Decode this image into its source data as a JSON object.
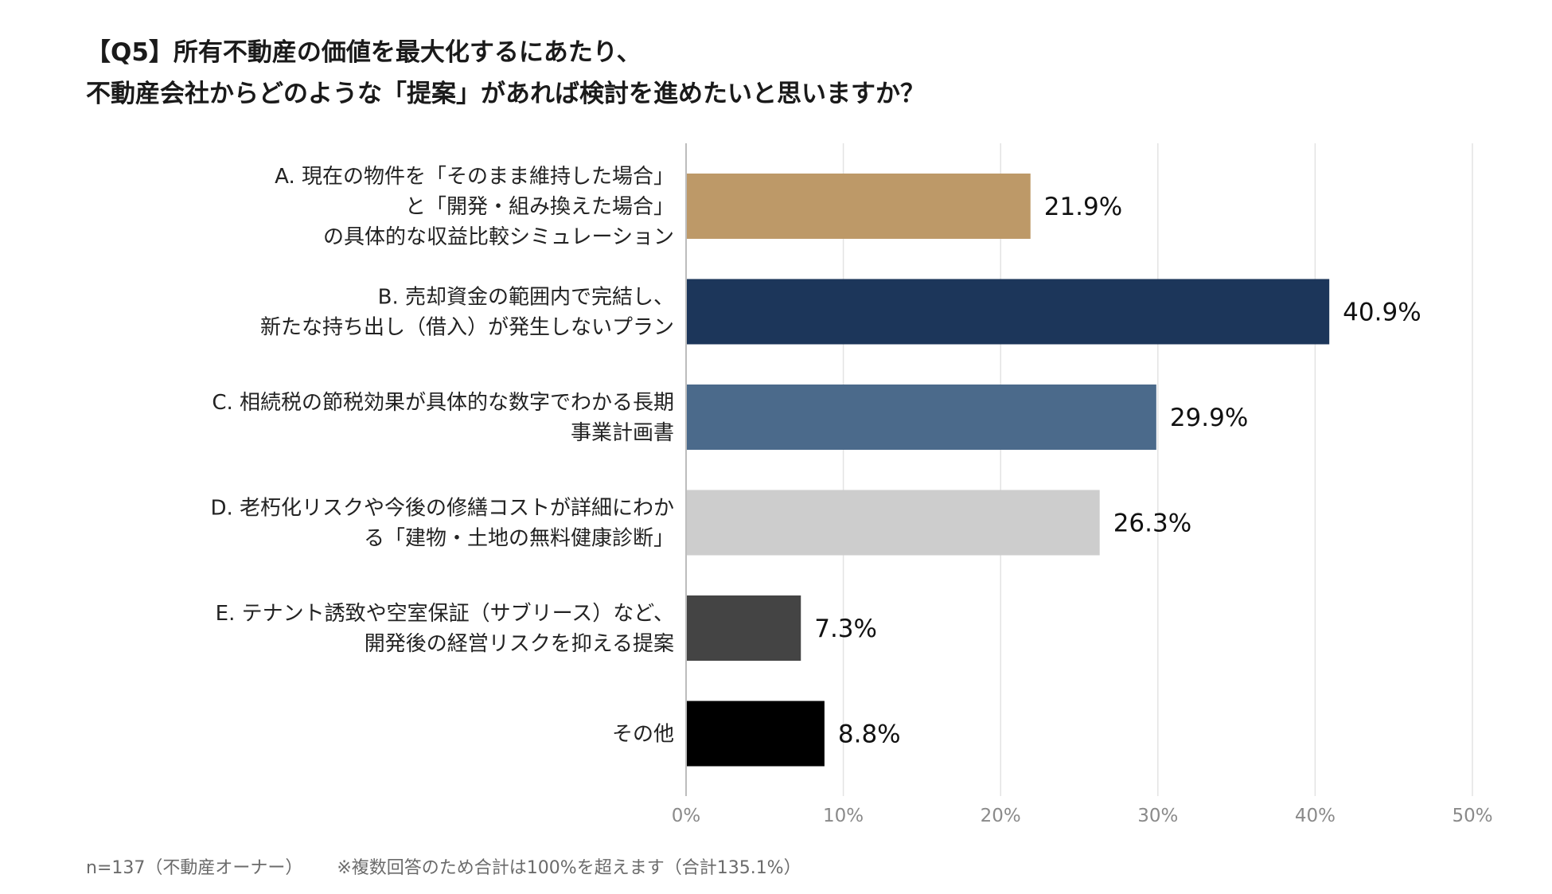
{
  "title": {
    "line1": "【Q5】所有不動産の価値を最大化するにあたり、",
    "line2": "不動産会社からどのような「提案」があれば検討を進めたいと思いますか？"
  },
  "footnote": {
    "sample": "n=137（不動産オーナー）",
    "note": "※複数回答のため合計は100%を超えます（合計135.1%）"
  },
  "chart_data": {
    "type": "bar",
    "orientation": "horizontal",
    "categories": [
      [
        "A. 現在の物件を「そのまま維持した場合」",
        "と「開発・組み換えた場合」",
        "の具体的な収益比較シミュレーション"
      ],
      [
        "B. 売却資金の範囲内で完結し、",
        "新たな持ち出し（借入）が発生しないプラン"
      ],
      [
        "C. 相続税の節税効果が具体的な数字でわかる長期",
        "事業計画書"
      ],
      [
        "D. 老朽化リスクや今後の修繕コストが詳細にわか",
        "る「建物・土地の無料健康診断」"
      ],
      [
        "E. テナント誘致や空室保証（サブリース）など、",
        "開発後の経営リスクを抑える提案"
      ],
      [
        "その他"
      ]
    ],
    "values": [
      21.9,
      40.9,
      29.9,
      26.3,
      7.3,
      8.8
    ],
    "value_labels": [
      "21.9%",
      "40.9%",
      "29.9%",
      "26.3%",
      "7.3%",
      "8.8%"
    ],
    "colors": [
      "#bd9968",
      "#1c365a",
      "#4b6a8b",
      "#cdcdcd",
      "#444444",
      "#000000"
    ],
    "xlim": [
      0,
      50
    ],
    "xticks": [
      0,
      10,
      20,
      30,
      40,
      50
    ],
    "xtick_labels": [
      "0%",
      "10%",
      "20%",
      "30%",
      "40%",
      "50%"
    ],
    "grid": true,
    "legend": "none"
  }
}
